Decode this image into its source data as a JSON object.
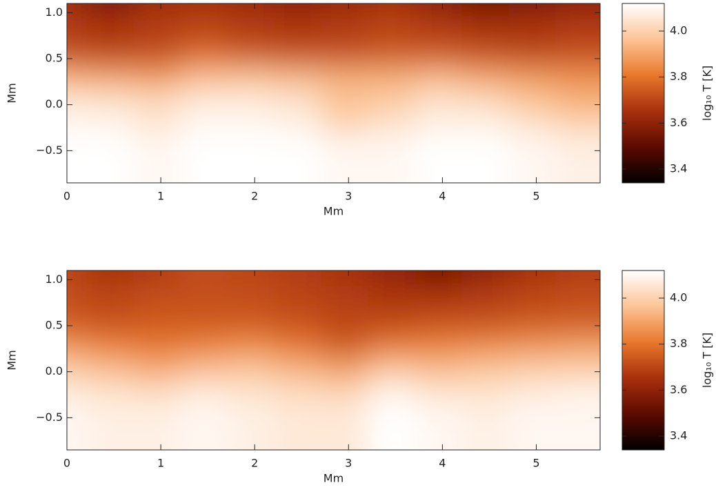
{
  "chart_data": [
    {
      "type": "heatmap",
      "x": [
        0.25,
        0.75,
        1.25,
        1.75,
        2.25,
        2.75,
        3.25,
        3.75,
        4.25,
        4.75,
        5.25,
        5.75
      ],
      "y": [
        1.0,
        0.75,
        0.5,
        0.25,
        0.0,
        -0.25,
        -0.5,
        -0.75
      ],
      "z": [
        [
          3.6,
          3.45,
          3.58,
          3.62,
          3.6,
          3.55,
          3.58,
          3.62,
          3.55,
          3.45,
          3.45,
          3.55
        ],
        [
          3.65,
          3.6,
          3.65,
          3.66,
          3.64,
          3.62,
          3.64,
          3.66,
          3.62,
          3.58,
          3.6,
          3.62
        ],
        [
          3.68,
          3.66,
          3.68,
          3.7,
          3.68,
          3.67,
          3.68,
          3.7,
          3.68,
          3.66,
          3.66,
          3.68
        ],
        [
          3.72,
          3.7,
          3.72,
          3.78,
          3.74,
          3.72,
          3.72,
          3.74,
          3.74,
          3.72,
          3.7,
          3.72
        ],
        [
          3.92,
          3.9,
          3.88,
          3.95,
          3.96,
          3.94,
          3.92,
          3.92,
          3.94,
          3.9,
          3.88,
          3.86
        ],
        [
          4.05,
          4.04,
          4.02,
          4.06,
          4.06,
          4.04,
          3.96,
          3.98,
          4.04,
          4.02,
          3.96,
          3.92
        ],
        [
          4.1,
          4.09,
          4.05,
          4.1,
          4.1,
          4.08,
          4.0,
          4.04,
          4.08,
          4.08,
          4.04,
          4.0
        ],
        [
          4.12,
          4.12,
          4.1,
          4.12,
          4.12,
          4.12,
          4.1,
          4.1,
          4.12,
          4.12,
          4.1,
          4.08
        ]
      ],
      "xlim": [
        0,
        5.68
      ],
      "ylim": [
        -0.85,
        1.1
      ],
      "xticks": [
        0,
        1,
        2,
        3,
        4,
        5
      ],
      "yticks": [
        {
          "value": -0.5,
          "label": "−0.5"
        },
        {
          "value": 0,
          "label": "0.0"
        },
        0.5,
        {
          "value": 1,
          "label": "1.0"
        }
      ],
      "xlabel": "Mm",
      "ylabel": "Mm",
      "colormap": [
        "#000000",
        "#5c0a00",
        "#a8300c",
        "#e8782c",
        "#fcc496",
        "#ffffff"
      ],
      "colorbar": {
        "label": "log₁₀ T [K]",
        "zlim": [
          3.34,
          4.12
        ],
        "ticks": [
          3.4,
          3.6,
          3.8,
          {
            "value": 4,
            "label": "4.0"
          }
        ]
      }
    },
    {
      "type": "heatmap",
      "x": [
        0.25,
        0.75,
        1.25,
        1.75,
        2.25,
        2.75,
        3.25,
        3.75,
        4.25,
        4.75,
        5.25,
        5.75
      ],
      "y": [
        1.0,
        0.75,
        0.5,
        0.25,
        0.0,
        -0.25,
        -0.5,
        -0.75
      ],
      "z": [
        [
          3.68,
          3.62,
          3.66,
          3.7,
          3.68,
          3.66,
          3.62,
          3.58,
          3.45,
          3.55,
          3.62,
          3.66
        ],
        [
          3.7,
          3.66,
          3.68,
          3.72,
          3.7,
          3.68,
          3.66,
          3.62,
          3.58,
          3.62,
          3.66,
          3.68
        ],
        [
          3.72,
          3.7,
          3.72,
          3.72,
          3.72,
          3.7,
          3.68,
          3.66,
          3.66,
          3.68,
          3.7,
          3.72
        ],
        [
          3.74,
          3.72,
          3.74,
          3.74,
          3.74,
          3.72,
          3.7,
          3.7,
          3.72,
          3.72,
          3.74,
          3.74
        ],
        [
          3.86,
          3.82,
          3.8,
          3.82,
          3.84,
          3.8,
          3.74,
          3.8,
          3.82,
          3.84,
          3.86,
          3.88
        ],
        [
          3.98,
          3.94,
          3.9,
          3.94,
          3.96,
          3.92,
          3.88,
          3.96,
          3.94,
          3.96,
          3.98,
          3.98
        ],
        [
          4.06,
          4.04,
          4.02,
          4.06,
          4.04,
          4.02,
          4.0,
          4.08,
          4.04,
          4.04,
          4.06,
          4.08
        ],
        [
          4.1,
          4.08,
          4.08,
          4.1,
          4.08,
          4.06,
          4.06,
          4.12,
          4.1,
          4.08,
          4.1,
          4.1
        ]
      ],
      "xlim": [
        0,
        5.68
      ],
      "ylim": [
        -0.85,
        1.1
      ],
      "xticks": [
        0,
        1,
        2,
        3,
        4,
        5
      ],
      "yticks": [
        {
          "value": -0.5,
          "label": "−0.5"
        },
        {
          "value": 0,
          "label": "0.0"
        },
        0.5,
        {
          "value": 1,
          "label": "1.0"
        }
      ],
      "xlabel": "Mm",
      "ylabel": "Mm",
      "colormap": [
        "#000000",
        "#5c0a00",
        "#a8300c",
        "#e8782c",
        "#fcc496",
        "#ffffff"
      ],
      "colorbar": {
        "label": "log₁₀ T [K]",
        "zlim": [
          3.34,
          4.12
        ],
        "ticks": [
          3.4,
          3.6,
          3.8,
          {
            "value": 4,
            "label": "4.0"
          }
        ]
      }
    }
  ]
}
